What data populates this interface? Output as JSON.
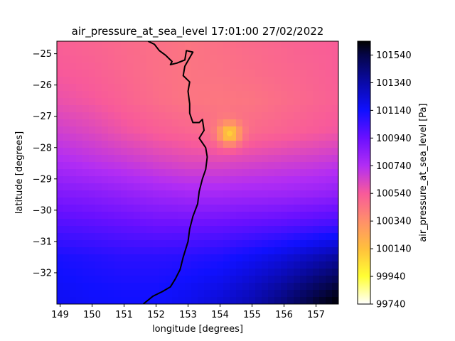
{
  "chart_data": {
    "type": "heatmap",
    "title": "air_pressure_at_sea_level 17:01:00 27/02/2022",
    "xlabel": "longitude [degrees]",
    "ylabel": "latitude [degrees]",
    "colorbar_label": "air_pressure_at_sea_level [Pa]",
    "colormap": "gnuplot2_r",
    "xlim": [
      148.9,
      157.7
    ],
    "ylim": [
      -33.0,
      -24.6
    ],
    "clim": [
      99740,
      101640
    ],
    "x_ticks": [
      {
        "value": 149,
        "label": "149"
      },
      {
        "value": 150,
        "label": "150"
      },
      {
        "value": 151,
        "label": "151"
      },
      {
        "value": 152,
        "label": "152"
      },
      {
        "value": 153,
        "label": "153"
      },
      {
        "value": 154,
        "label": "154"
      },
      {
        "value": 155,
        "label": "155"
      },
      {
        "value": 156,
        "label": "156"
      },
      {
        "value": 157,
        "label": "157"
      }
    ],
    "y_ticks": [
      {
        "value": -25,
        "label": "−25"
      },
      {
        "value": -26,
        "label": "−26"
      },
      {
        "value": -27,
        "label": "−27"
      },
      {
        "value": -28,
        "label": "−28"
      },
      {
        "value": -29,
        "label": "−29"
      },
      {
        "value": -30,
        "label": "−30"
      },
      {
        "value": -31,
        "label": "−31"
      },
      {
        "value": -32,
        "label": "−32"
      }
    ],
    "colorbar_ticks": [
      {
        "value": 99740,
        "label": "99740"
      },
      {
        "value": 99940,
        "label": "99940"
      },
      {
        "value": 100140,
        "label": "100140"
      },
      {
        "value": 100340,
        "label": "100340"
      },
      {
        "value": 100540,
        "label": "100540"
      },
      {
        "value": 100740,
        "label": "100740"
      },
      {
        "value": 100940,
        "label": "100940"
      },
      {
        "value": 101140,
        "label": "101140"
      },
      {
        "value": 101340,
        "label": "101340"
      },
      {
        "value": 101540,
        "label": "101540"
      }
    ],
    "colorbar_stops": [
      {
        "value": 99740,
        "color": "#ffffff"
      },
      {
        "value": 99940,
        "color": "#ffff34"
      },
      {
        "value": 100140,
        "color": "#ffc03c"
      },
      {
        "value": 100340,
        "color": "#ff8f6a"
      },
      {
        "value": 100540,
        "color": "#f85a9a"
      },
      {
        "value": 100740,
        "color": "#b22df4"
      },
      {
        "value": 100940,
        "color": "#6a10ff"
      },
      {
        "value": 101140,
        "color": "#1010ff"
      },
      {
        "value": 101340,
        "color": "#0a0aa8"
      },
      {
        "value": 101540,
        "color": "#050548"
      },
      {
        "value": 101640,
        "color": "#000000"
      }
    ],
    "pressure_field": {
      "lon": [
        148.9,
        150.0,
        151.0,
        152.0,
        153.0,
        154.0,
        155.0,
        156.0,
        157.0,
        157.7
      ],
      "lat": [
        -24.6,
        -25.5,
        -26.5,
        -27.5,
        -28.5,
        -29.5,
        -30.5,
        -31.5,
        -32.5,
        -33.0
      ],
      "values": [
        [
          100520,
          100500,
          100480,
          100460,
          100440,
          100460,
          100480,
          100500,
          100520,
          100530
        ],
        [
          100540,
          100520,
          100490,
          100460,
          100440,
          100450,
          100470,
          100490,
          100510,
          100530
        ],
        [
          100580,
          100550,
          100510,
          100470,
          100440,
          100430,
          100440,
          100470,
          100500,
          100520
        ],
        [
          100660,
          100620,
          100570,
          100530,
          100500,
          100460,
          100480,
          100510,
          100540,
          100560
        ],
        [
          100760,
          100720,
          100690,
          100650,
          100620,
          100620,
          100640,
          100660,
          100680,
          100700
        ],
        [
          100880,
          100860,
          100830,
          100800,
          100780,
          100780,
          100790,
          100800,
          100820,
          100840
        ],
        [
          101000,
          100980,
          100960,
          100940,
          100940,
          100950,
          100970,
          100990,
          101020,
          101040
        ],
        [
          101120,
          101100,
          101080,
          101080,
          101090,
          101110,
          101160,
          101220,
          101300,
          101360
        ],
        [
          101160,
          101140,
          101130,
          101130,
          101160,
          101200,
          101280,
          101380,
          101500,
          101580
        ],
        [
          101170,
          101150,
          101140,
          101140,
          101180,
          101240,
          101320,
          101440,
          101580,
          101640
        ]
      ]
    },
    "low_pressure_center": {
      "lon": 154.3,
      "lat": -27.55,
      "value": 100100
    },
    "coastline": [
      [
        151.75,
        -24.6
      ],
      [
        151.95,
        -24.7
      ],
      [
        152.1,
        -24.9
      ],
      [
        152.3,
        -25.05
      ],
      [
        152.5,
        -25.25
      ],
      [
        152.45,
        -25.35
      ],
      [
        152.65,
        -25.3
      ],
      [
        152.9,
        -25.2
      ],
      [
        152.95,
        -24.9
      ],
      [
        153.15,
        -24.95
      ],
      [
        152.9,
        -25.4
      ],
      [
        152.85,
        -25.7
      ],
      [
        153.05,
        -25.9
      ],
      [
        153.0,
        -26.2
      ],
      [
        153.05,
        -26.6
      ],
      [
        153.05,
        -26.9
      ],
      [
        153.1,
        -27.05
      ],
      [
        153.15,
        -27.2
      ],
      [
        153.35,
        -27.2
      ],
      [
        153.45,
        -27.1
      ],
      [
        153.5,
        -27.45
      ],
      [
        153.35,
        -27.7
      ],
      [
        153.55,
        -28.0
      ],
      [
        153.6,
        -28.3
      ],
      [
        153.55,
        -28.7
      ],
      [
        153.45,
        -29.0
      ],
      [
        153.35,
        -29.4
      ],
      [
        153.3,
        -29.8
      ],
      [
        153.15,
        -30.2
      ],
      [
        153.05,
        -30.6
      ],
      [
        153.0,
        -31.0
      ],
      [
        152.85,
        -31.5
      ],
      [
        152.75,
        -31.9
      ],
      [
        152.6,
        -32.2
      ],
      [
        152.45,
        -32.45
      ],
      [
        152.2,
        -32.6
      ],
      [
        151.9,
        -32.75
      ],
      [
        151.6,
        -33.0
      ]
    ]
  }
}
